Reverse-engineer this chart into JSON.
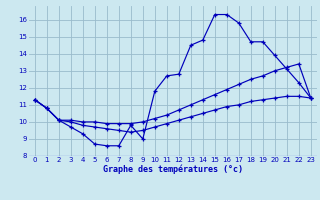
{
  "xlabel": "Graphe des températures (°c)",
  "bg_color": "#cce8f0",
  "grid_color": "#99bbcc",
  "line_color": "#0000bb",
  "xlim": [
    -0.5,
    23.5
  ],
  "ylim": [
    8,
    16.8
  ],
  "xticks": [
    0,
    1,
    2,
    3,
    4,
    5,
    6,
    7,
    8,
    9,
    10,
    11,
    12,
    13,
    14,
    15,
    16,
    17,
    18,
    19,
    20,
    21,
    22,
    23
  ],
  "yticks": [
    8,
    9,
    10,
    11,
    12,
    13,
    14,
    15,
    16
  ],
  "line1_x": [
    0,
    1,
    2,
    3,
    4,
    5,
    6,
    7,
    8,
    9,
    10,
    11,
    12,
    13,
    14,
    15,
    16,
    17,
    18,
    19,
    20,
    21,
    22,
    23
  ],
  "line1_y": [
    11.3,
    10.8,
    10.1,
    9.7,
    9.3,
    8.7,
    8.6,
    8.6,
    9.8,
    9.0,
    11.8,
    12.7,
    12.8,
    14.5,
    14.8,
    16.3,
    16.3,
    15.8,
    14.7,
    14.7,
    13.9,
    13.1,
    12.3,
    11.4
  ],
  "line2_x": [
    0,
    1,
    2,
    3,
    4,
    5,
    6,
    7,
    8,
    9,
    10,
    11,
    12,
    13,
    14,
    15,
    16,
    17,
    18,
    19,
    20,
    21,
    22,
    23
  ],
  "line2_y": [
    11.3,
    10.8,
    10.1,
    10.1,
    10.0,
    10.0,
    9.9,
    9.9,
    9.9,
    10.0,
    10.2,
    10.4,
    10.7,
    11.0,
    11.3,
    11.6,
    11.9,
    12.2,
    12.5,
    12.7,
    13.0,
    13.2,
    13.4,
    11.4
  ],
  "line3_x": [
    0,
    1,
    2,
    3,
    4,
    5,
    6,
    7,
    8,
    9,
    10,
    11,
    12,
    13,
    14,
    15,
    16,
    17,
    18,
    19,
    20,
    21,
    22,
    23
  ],
  "line3_y": [
    11.3,
    10.8,
    10.1,
    10.0,
    9.8,
    9.7,
    9.6,
    9.5,
    9.4,
    9.5,
    9.7,
    9.9,
    10.1,
    10.3,
    10.5,
    10.7,
    10.9,
    11.0,
    11.2,
    11.3,
    11.4,
    11.5,
    11.5,
    11.4
  ]
}
